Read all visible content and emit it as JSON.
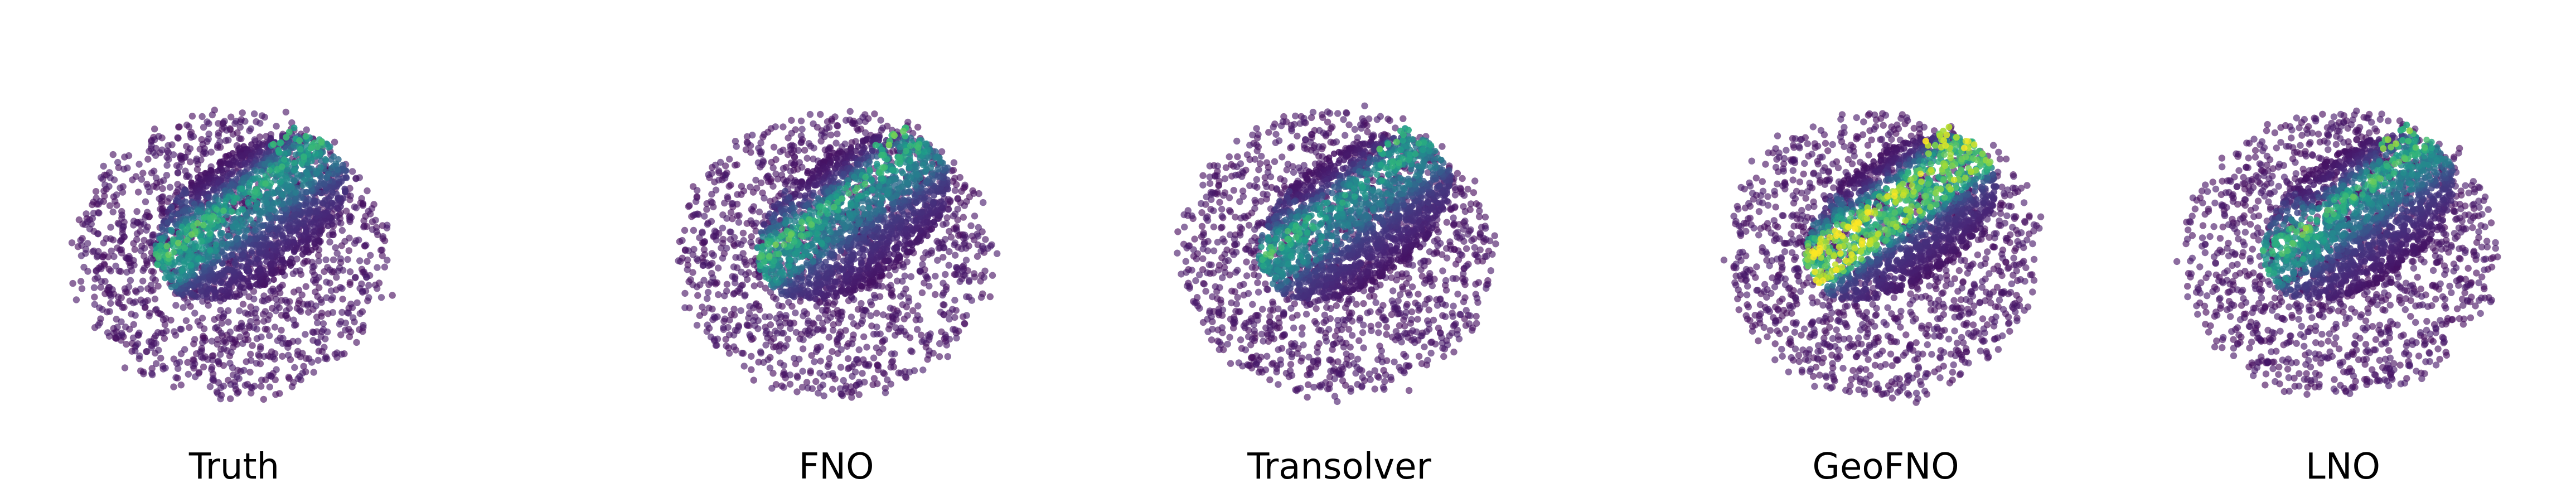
{
  "chart_data": [
    {
      "type": "scatter",
      "title": "Truth",
      "xlabel": "",
      "ylabel": "",
      "axes_visible": false,
      "grid": false,
      "colormap": "viridis",
      "hotspot_intensity": 0.55,
      "seed": 11
    },
    {
      "type": "scatter",
      "title": "FNO",
      "xlabel": "",
      "ylabel": "",
      "axes_visible": false,
      "grid": false,
      "colormap": "viridis",
      "hotspot_intensity": 0.55,
      "seed": 11
    },
    {
      "type": "scatter",
      "title": "Transolver",
      "xlabel": "",
      "ylabel": "",
      "axes_visible": false,
      "grid": false,
      "colormap": "viridis",
      "hotspot_intensity": 0.5,
      "seed": 11
    },
    {
      "type": "scatter",
      "title": "GeoFNO",
      "xlabel": "",
      "ylabel": "",
      "axes_visible": false,
      "grid": false,
      "colormap": "viridis",
      "hotspot_intensity": 0.85,
      "seed": 29
    },
    {
      "type": "scatter",
      "title": "LNO",
      "xlabel": "",
      "ylabel": "",
      "axes_visible": false,
      "grid": false,
      "colormap": "viridis",
      "hotspot_intensity": 0.6,
      "seed": 37
    }
  ]
}
